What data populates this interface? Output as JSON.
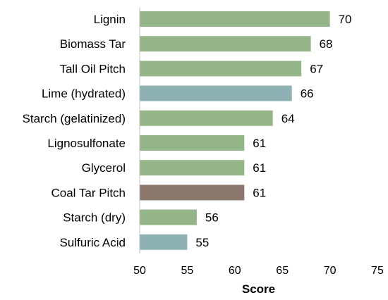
{
  "chart_data": {
    "type": "bar",
    "orientation": "horizontal",
    "categories": [
      "Lignin",
      "Biomass Tar",
      "Tall Oil Pitch",
      "Lime (hydrated)",
      "Starch (gelatinized)",
      "Lignosulfonate",
      "Glycerol",
      "Coal Tar Pitch",
      "Starch (dry)",
      "Sulfuric Acid"
    ],
    "values": [
      70,
      68,
      67,
      66,
      64,
      61,
      61,
      61,
      56,
      55
    ],
    "data_labels": [
      "70",
      "68",
      "67",
      "66",
      "64",
      "61",
      "61",
      "61",
      "56",
      "55"
    ],
    "bar_colors": [
      "#93b587",
      "#93b587",
      "#93b587",
      "#8eb1b4",
      "#93b587",
      "#93b587",
      "#93b587",
      "#8b786c",
      "#93b587",
      "#8eb1b4"
    ],
    "title": "",
    "xlabel": "Score",
    "ylabel": "",
    "xlim": [
      50,
      75
    ],
    "x_ticks": [
      50,
      55,
      60,
      65,
      70,
      75
    ],
    "grid": false,
    "legend": "none"
  }
}
